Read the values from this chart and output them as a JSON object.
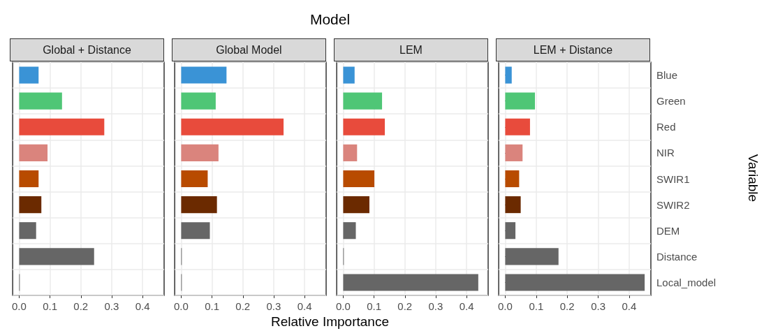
{
  "chart_data": [
    {
      "type": "other",
      "title": "Model",
      "xlabel": "Relative Importance",
      "ylabel": "Variable"
    },
    {
      "type": "bar",
      "orientation": "horizontal",
      "title": "Global + Distance",
      "categories": [
        null,
        null,
        null,
        null,
        null,
        null,
        null,
        null,
        null
      ],
      "values": [
        0.063,
        0.139,
        0.276,
        0.092,
        0.063,
        0.072,
        0.055,
        0.243,
        0.002
      ],
      "colors": [
        "#3a93d6",
        "#4fc676",
        "#e84b3c",
        "#da847d",
        "#b84b00",
        "#6b2a00",
        "#666666",
        "#666666",
        "#666666"
      ],
      "xlim": [
        -0.021,
        0.47
      ],
      "xticks": [
        {
          "value": 0,
          "label": "0.0"
        },
        {
          "value": 0.1,
          "label": "0.1"
        },
        {
          "value": 0.2,
          "label": "0.2"
        },
        {
          "value": 0.3,
          "label": "0.3"
        },
        {
          "value": 0.4,
          "label": "0.4"
        }
      ],
      "grid": true,
      "tick_labels": "x"
    },
    {
      "type": "bar",
      "orientation": "horizontal",
      "title": "Global Model",
      "categories": [
        null,
        null,
        null,
        null,
        null,
        null,
        null,
        null,
        null
      ],
      "values": [
        0.147,
        0.112,
        0.332,
        0.121,
        0.086,
        0.116,
        0.093,
        0.002,
        0.002
      ],
      "colors": [
        "#3a93d6",
        "#4fc676",
        "#e84b3c",
        "#da847d",
        "#b84b00",
        "#6b2a00",
        "#666666",
        "#666666",
        "#666666"
      ],
      "xlim": [
        -0.021,
        0.47
      ],
      "xticks": [
        {
          "value": 0,
          "label": "0.0"
        },
        {
          "value": 0.1,
          "label": "0.1"
        },
        {
          "value": 0.2,
          "label": "0.2"
        },
        {
          "value": 0.3,
          "label": "0.3"
        },
        {
          "value": 0.4,
          "label": "0.4"
        }
      ],
      "grid": true,
      "tick_labels": "x"
    },
    {
      "type": "bar",
      "orientation": "horizontal",
      "title": "LEM",
      "categories": [
        null,
        null,
        null,
        null,
        null,
        null,
        null,
        null,
        null
      ],
      "values": [
        0.037,
        0.126,
        0.135,
        0.045,
        0.101,
        0.085,
        0.041,
        0.002,
        0.438
      ],
      "colors": [
        "#3a93d6",
        "#4fc676",
        "#e84b3c",
        "#da847d",
        "#b84b00",
        "#6b2a00",
        "#666666",
        "#666666",
        "#666666"
      ],
      "xlim": [
        -0.021,
        0.47
      ],
      "xticks": [
        {
          "value": 0,
          "label": "0.0"
        },
        {
          "value": 0.1,
          "label": "0.1"
        },
        {
          "value": 0.2,
          "label": "0.2"
        },
        {
          "value": 0.3,
          "label": "0.3"
        },
        {
          "value": 0.4,
          "label": "0.4"
        }
      ],
      "grid": true,
      "tick_labels": "x"
    },
    {
      "type": "bar",
      "orientation": "horizontal",
      "title": "LEM + Distance",
      "categories": [
        "Blue",
        "Green",
        "Red",
        "NIR",
        "SWIR1",
        "SWIR2",
        "DEM",
        "Distance",
        "Local_model"
      ],
      "values": [
        0.021,
        0.096,
        0.08,
        0.056,
        0.045,
        0.05,
        0.033,
        0.172,
        0.45
      ],
      "colors": [
        "#3a93d6",
        "#4fc676",
        "#e84b3c",
        "#da847d",
        "#b84b00",
        "#6b2a00",
        "#666666",
        "#666666",
        "#666666"
      ],
      "xlim": [
        -0.021,
        0.47
      ],
      "xticks": [
        {
          "value": 0,
          "label": "0.0"
        },
        {
          "value": 0.1,
          "label": "0.1"
        },
        {
          "value": 0.2,
          "label": "0.2"
        },
        {
          "value": 0.3,
          "label": "0.3"
        },
        {
          "value": 0.4,
          "label": "0.4"
        }
      ],
      "grid": true
    }
  ]
}
